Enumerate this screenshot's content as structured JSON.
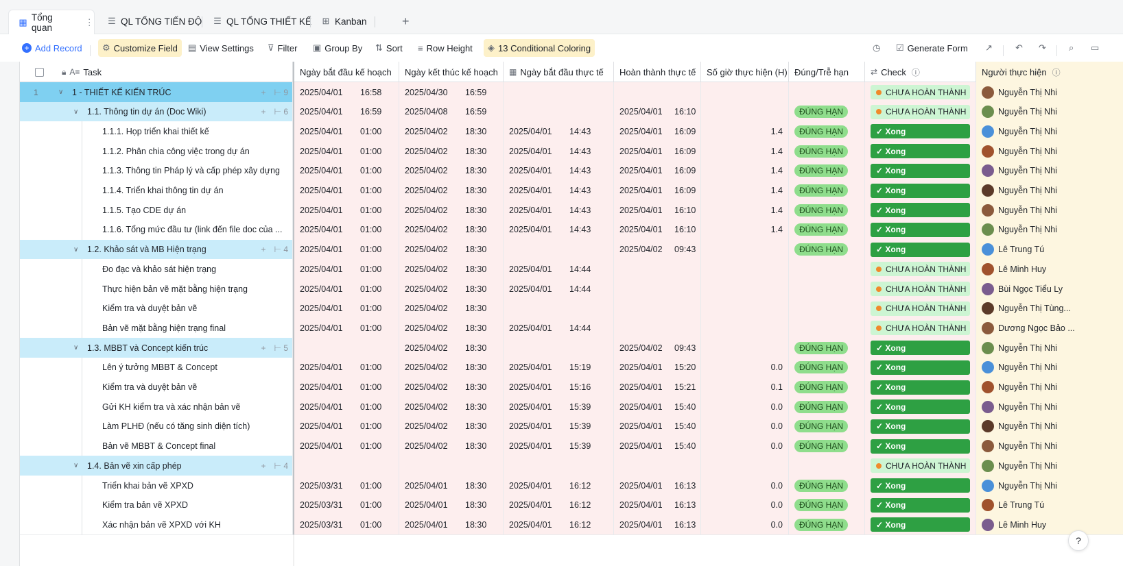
{
  "tabs": [
    {
      "label": "Tổng quan",
      "icon": "table-icon"
    },
    {
      "label": "QL TỔNG TIẾN ĐỘ",
      "icon": "gantt-icon"
    },
    {
      "label": "QL TỔNG THIẾT KẾ",
      "icon": "gantt-icon"
    },
    {
      "label": "Kanban",
      "icon": "kanban-icon"
    }
  ],
  "tab_more": "⋮",
  "tab_add": "+",
  "toolbar": {
    "add_record": "Add Record",
    "customize_field": "Customize Field",
    "view_settings": "View Settings",
    "filter": "Filter",
    "group_by": "Group By",
    "sort": "Sort",
    "row_height": "Row Height",
    "conditional_coloring": "13 Conditional Coloring",
    "generate_form": "Generate Form"
  },
  "columns": {
    "task": "Task",
    "plan_start": "Ngày bắt đầu kế hoạch",
    "plan_end": "Ngày kết thúc kế hoạch",
    "actual_start": "Ngày bắt đầu thực tế",
    "actual_done": "Hoàn thành thực tế",
    "hours": "Số giờ thực hiện (H)",
    "ontime": "Đúng/Trễ hạn",
    "check": "Check",
    "assignee": "Người thực hiện"
  },
  "labels": {
    "on_time": "ĐÚNG HẠN",
    "done": "✓ Xong",
    "pending": "CHƯA HOÀN THÀNH"
  },
  "rows": [
    {
      "level": 1,
      "num": "1",
      "task": "1 - THIẾT KẾ KIẾN TRÚC",
      "count": "9",
      "ps": "2025/04/01",
      "pst": "16:58",
      "pe": "2025/04/30",
      "pet": "16:59",
      "as": "",
      "ast": "",
      "ad": "",
      "adt": "",
      "hours": "",
      "ontime": false,
      "check": "pending",
      "person": "Nguyễn Thị  Nhi"
    },
    {
      "level": 2,
      "task": "1.1. Thông tin dự án (Doc Wiki)",
      "count": "6",
      "ps": "2025/04/01",
      "pst": "16:59",
      "pe": "2025/04/08",
      "pet": "16:59",
      "as": "",
      "ast": "",
      "ad": "2025/04/01",
      "adt": "16:10",
      "hours": "",
      "ontime": true,
      "check": "pending",
      "person": "Nguyễn Thị  Nhi"
    },
    {
      "level": 3,
      "task": "1.1.1. Họp triển khai thiết kế",
      "ps": "2025/04/01",
      "pst": "01:00",
      "pe": "2025/04/02",
      "pet": "18:30",
      "as": "2025/04/01",
      "ast": "14:43",
      "ad": "2025/04/01",
      "adt": "16:09",
      "hours": "1.4",
      "ontime": true,
      "check": "done",
      "person": "Nguyễn Thị  Nhi"
    },
    {
      "level": 3,
      "task": "1.1.2. Phân chia công việc trong dự án",
      "ps": "2025/04/01",
      "pst": "01:00",
      "pe": "2025/04/02",
      "pet": "18:30",
      "as": "2025/04/01",
      "ast": "14:43",
      "ad": "2025/04/01",
      "adt": "16:09",
      "hours": "1.4",
      "ontime": true,
      "check": "done",
      "person": "Nguyễn Thị  Nhi"
    },
    {
      "level": 3,
      "task": "1.1.3. Thông tin Pháp lý và cấp phép xây dựng",
      "ps": "2025/04/01",
      "pst": "01:00",
      "pe": "2025/04/02",
      "pet": "18:30",
      "as": "2025/04/01",
      "ast": "14:43",
      "ad": "2025/04/01",
      "adt": "16:09",
      "hours": "1.4",
      "ontime": true,
      "check": "done",
      "person": "Nguyễn Thị  Nhi"
    },
    {
      "level": 3,
      "task": "1.1.4. Triển khai thông tin dự án",
      "ps": "2025/04/01",
      "pst": "01:00",
      "pe": "2025/04/02",
      "pet": "18:30",
      "as": "2025/04/01",
      "ast": "14:43",
      "ad": "2025/04/01",
      "adt": "16:09",
      "hours": "1.4",
      "ontime": true,
      "check": "done",
      "person": "Nguyễn Thị  Nhi"
    },
    {
      "level": 3,
      "task": "1.1.5. Tạo CDE dự án",
      "ps": "2025/04/01",
      "pst": "01:00",
      "pe": "2025/04/02",
      "pet": "18:30",
      "as": "2025/04/01",
      "ast": "14:43",
      "ad": "2025/04/01",
      "adt": "16:10",
      "hours": "1.4",
      "ontime": true,
      "check": "done",
      "person": "Nguyễn Thị  Nhi"
    },
    {
      "level": 3,
      "task": "1.1.6. Tổng mức đầu tư (link đến file doc của ...",
      "ps": "2025/04/01",
      "pst": "01:00",
      "pe": "2025/04/02",
      "pet": "18:30",
      "as": "2025/04/01",
      "ast": "14:43",
      "ad": "2025/04/01",
      "adt": "16:10",
      "hours": "1.4",
      "ontime": true,
      "check": "done",
      "person": "Nguyễn Thị  Nhi"
    },
    {
      "level": 2,
      "task": "1.2. Khảo sát và MB Hiện trạng",
      "count": "4",
      "ps": "2025/04/01",
      "pst": "01:00",
      "pe": "2025/04/02",
      "pet": "18:30",
      "as": "",
      "ast": "",
      "ad": "2025/04/02",
      "adt": "09:43",
      "hours": "",
      "ontime": true,
      "check": "done",
      "person": "Lê Trung Tú"
    },
    {
      "level": 3,
      "task": "Đo đạc và khảo sát hiện trạng",
      "ps": "2025/04/01",
      "pst": "01:00",
      "pe": "2025/04/02",
      "pet": "18:30",
      "as": "2025/04/01",
      "ast": "14:44",
      "ad": "",
      "adt": "",
      "hours": "",
      "ontime": false,
      "check": "pending",
      "person": "Lê Minh Huy"
    },
    {
      "level": 3,
      "task": "Thực hiện bản vẽ mặt bằng hiện trạng",
      "ps": "2025/04/01",
      "pst": "01:00",
      "pe": "2025/04/02",
      "pet": "18:30",
      "as": "2025/04/01",
      "ast": "14:44",
      "ad": "",
      "adt": "",
      "hours": "",
      "ontime": false,
      "check": "pending",
      "person": "Bùi Ngọc Tiểu Ly"
    },
    {
      "level": 3,
      "task": "Kiểm tra và duyệt bản vẽ",
      "ps": "2025/04/01",
      "pst": "01:00",
      "pe": "2025/04/02",
      "pet": "18:30",
      "as": "",
      "ast": "",
      "ad": "",
      "adt": "",
      "hours": "",
      "ontime": false,
      "check": "pending",
      "person": "Nguyễn Thị Tùng..."
    },
    {
      "level": 3,
      "task": "Bản vẽ mặt bằng hiện trạng final",
      "ps": "2025/04/01",
      "pst": "01:00",
      "pe": "2025/04/02",
      "pet": "18:30",
      "as": "2025/04/01",
      "ast": "14:44",
      "ad": "",
      "adt": "",
      "hours": "",
      "ontime": false,
      "check": "pending",
      "person": "Dương Ngọc Bảo ..."
    },
    {
      "level": 2,
      "task": "1.3. MBBT và Concept kiến trúc",
      "count": "5",
      "ps": "",
      "pst": "",
      "pe": "2025/04/02",
      "pet": "18:30",
      "as": "",
      "ast": "",
      "ad": "2025/04/02",
      "adt": "09:43",
      "hours": "",
      "ontime": true,
      "check": "done",
      "person": "Nguyễn Thị  Nhi"
    },
    {
      "level": 3,
      "task": "Lên ý tưởng MBBT & Concept",
      "ps": "2025/04/01",
      "pst": "01:00",
      "pe": "2025/04/02",
      "pet": "18:30",
      "as": "2025/04/01",
      "ast": "15:19",
      "ad": "2025/04/01",
      "adt": "15:20",
      "hours": "0.0",
      "ontime": true,
      "check": "done",
      "person": "Nguyễn Thị  Nhi"
    },
    {
      "level": 3,
      "task": "Kiểm tra và duyệt bản vẽ",
      "ps": "2025/04/01",
      "pst": "01:00",
      "pe": "2025/04/02",
      "pet": "18:30",
      "as": "2025/04/01",
      "ast": "15:16",
      "ad": "2025/04/01",
      "adt": "15:21",
      "hours": "0.1",
      "ontime": true,
      "check": "done",
      "person": "Nguyễn Thị  Nhi"
    },
    {
      "level": 3,
      "task": "Gửi KH kiểm tra và xác nhận bản vẽ",
      "ps": "2025/04/01",
      "pst": "01:00",
      "pe": "2025/04/02",
      "pet": "18:30",
      "as": "2025/04/01",
      "ast": "15:39",
      "ad": "2025/04/01",
      "adt": "15:40",
      "hours": "0.0",
      "ontime": true,
      "check": "done",
      "person": "Nguyễn Thị  Nhi"
    },
    {
      "level": 3,
      "task": "Làm PLHĐ (nếu có tăng sinh diện tích)",
      "ps": "2025/04/01",
      "pst": "01:00",
      "pe": "2025/04/02",
      "pet": "18:30",
      "as": "2025/04/01",
      "ast": "15:39",
      "ad": "2025/04/01",
      "adt": "15:40",
      "hours": "0.0",
      "ontime": true,
      "check": "done",
      "person": "Nguyễn Thị  Nhi"
    },
    {
      "level": 3,
      "task": "Bản vẽ MBBT & Concept final",
      "ps": "2025/04/01",
      "pst": "01:00",
      "pe": "2025/04/02",
      "pet": "18:30",
      "as": "2025/04/01",
      "ast": "15:39",
      "ad": "2025/04/01",
      "adt": "15:40",
      "hours": "0.0",
      "ontime": true,
      "check": "done",
      "person": "Nguyễn Thị  Nhi"
    },
    {
      "level": 2,
      "task": "1.4. Bản vẽ xin cấp phép",
      "count": "4",
      "ps": "",
      "pst": "",
      "pe": "",
      "pet": "",
      "as": "",
      "ast": "",
      "ad": "",
      "adt": "",
      "hours": "",
      "ontime": false,
      "check": "pending",
      "person": "Nguyễn Thị  Nhi"
    },
    {
      "level": 3,
      "task": "Triển khai bản vẽ XPXD",
      "ps": "2025/03/31",
      "pst": "01:00",
      "pe": "2025/04/01",
      "pet": "18:30",
      "as": "2025/04/01",
      "ast": "16:12",
      "ad": "2025/04/01",
      "adt": "16:13",
      "hours": "0.0",
      "ontime": true,
      "check": "done",
      "person": "Nguyễn Thị  Nhi"
    },
    {
      "level": 3,
      "task": "Kiểm tra bản vẽ XPXD",
      "ps": "2025/03/31",
      "pst": "01:00",
      "pe": "2025/04/01",
      "pet": "18:30",
      "as": "2025/04/01",
      "ast": "16:12",
      "ad": "2025/04/01",
      "adt": "16:13",
      "hours": "0.0",
      "ontime": true,
      "check": "done",
      "person": "Lê Trung Tú"
    },
    {
      "level": 3,
      "task": "Xác nhận bản vẽ XPXD với KH",
      "ps": "2025/03/31",
      "pst": "01:00",
      "pe": "2025/04/01",
      "pet": "18:30",
      "as": "2025/04/01",
      "ast": "16:12",
      "ad": "2025/04/01",
      "adt": "16:13",
      "hours": "0.0",
      "ontime": true,
      "check": "done",
      "person": "Lê Minh Huy"
    }
  ],
  "colors": {
    "group1": "#7fd0f1",
    "group2": "#c9ecfa",
    "cell_bg": "#fdeeee",
    "done": "#2ea043",
    "pending": "#cdf5d3",
    "accent": "#3370ff"
  }
}
